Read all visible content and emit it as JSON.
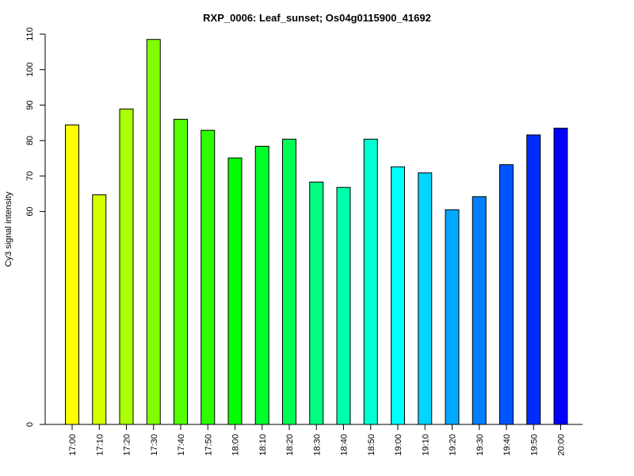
{
  "chart_data": {
    "type": "bar",
    "title": "RXP_0006: Leaf_sunset; Os04g0115900_41692",
    "xlabel": "",
    "ylabel": "Cy3 signal intensity",
    "categories": [
      "17:00",
      "17:10",
      "17:20",
      "17:30",
      "17:40",
      "17:50",
      "18:00",
      "18:10",
      "18:20",
      "18:30",
      "18:40",
      "18:50",
      "19:00",
      "19:10",
      "19:20",
      "19:30",
      "19:40",
      "19:50",
      "20:00"
    ],
    "values": [
      84.4,
      64.7,
      88.9,
      108.5,
      86.0,
      82.9,
      75.1,
      78.4,
      80.4,
      68.3,
      66.8,
      80.4,
      72.6,
      70.9,
      60.5,
      64.2,
      73.2,
      81.6,
      83.5
    ],
    "colors": [
      "#FFFF00",
      "#D4FF00",
      "#AAFF00",
      "#80FF00",
      "#55FF00",
      "#2BFF00",
      "#00FF00",
      "#00FF2B",
      "#00FF55",
      "#00FF80",
      "#00FFAA",
      "#00FFD4",
      "#00FFFF",
      "#00D4FF",
      "#00AAFF",
      "#0080FF",
      "#0055FF",
      "#002BFF",
      "#0000FF"
    ],
    "yticks": [
      0,
      60,
      70,
      80,
      90,
      100,
      110
    ],
    "ylim": [
      0,
      110
    ],
    "grid": false,
    "legend": "none"
  }
}
